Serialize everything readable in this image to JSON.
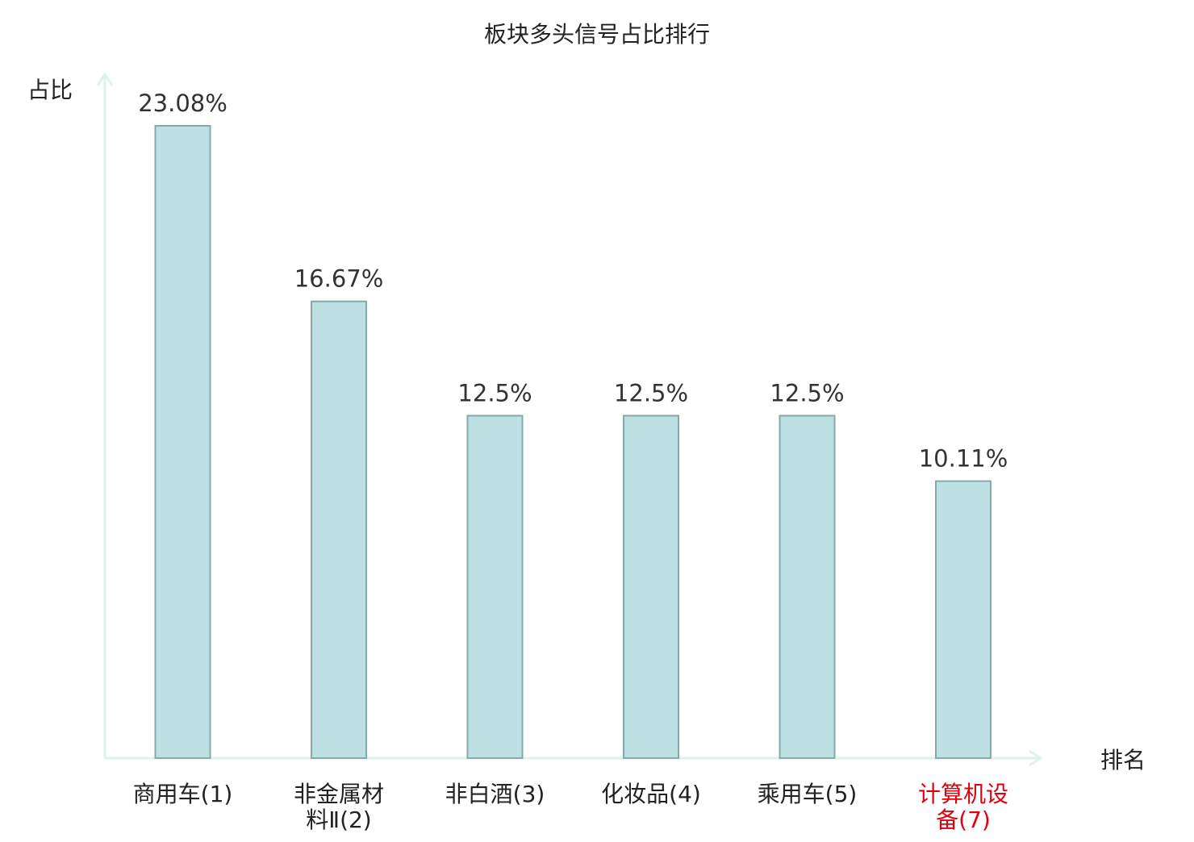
{
  "chart_data": {
    "type": "bar",
    "title": "板块多头信号占比排行",
    "ylabel": "占比",
    "xlabel": "排名",
    "categories": [
      {
        "name_lines": [
          "商用车"
        ],
        "rank": "(1)",
        "highlight": false
      },
      {
        "name_lines": [
          "非金属材",
          "料Ⅱ"
        ],
        "rank": "(2)",
        "highlight": false
      },
      {
        "name_lines": [
          "非白酒"
        ],
        "rank": "(3)",
        "highlight": false
      },
      {
        "name_lines": [
          "化妆品"
        ],
        "rank": "(4)",
        "highlight": false
      },
      {
        "name_lines": [
          "乘用车"
        ],
        "rank": "(5)",
        "highlight": false
      },
      {
        "name_lines": [
          "计算机设",
          "备"
        ],
        "rank": "(7)",
        "highlight": true
      }
    ],
    "values": [
      23.08,
      16.67,
      12.5,
      12.5,
      12.5,
      10.11
    ],
    "value_labels": [
      "23.08%",
      "16.67%",
      "12.5%",
      "12.5%",
      "12.5%",
      "10.11%"
    ],
    "ylim": [
      0,
      25
    ],
    "grid": false,
    "colors": {
      "bar_fill": "#bde0e3",
      "bar_stroke": "#86a9ab",
      "axis": "#dff2ef",
      "label_text": "#222222",
      "value_text": "#333333",
      "highlight_text": "#e0000f"
    }
  }
}
